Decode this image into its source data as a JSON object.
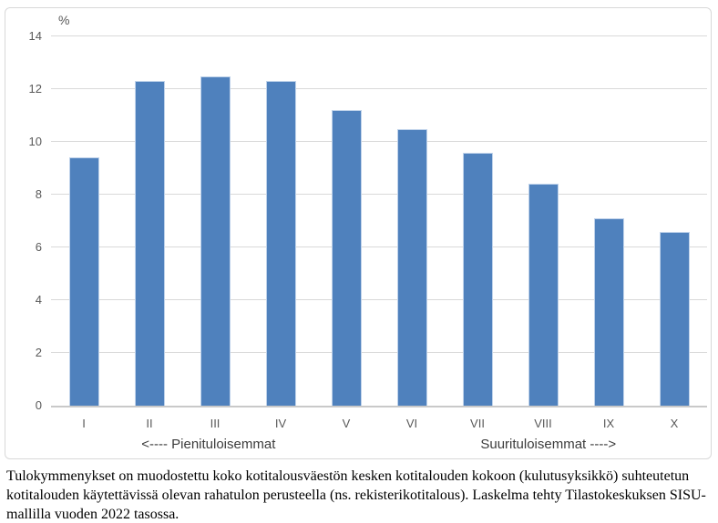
{
  "chart": {
    "unit_label": "%",
    "xlabel_left": "<---- Pienituloisemmat",
    "xlabel_right": "Suurituloisemmat ---->"
  },
  "chart_data": {
    "type": "bar",
    "title": "",
    "categories": [
      "I",
      "II",
      "III",
      "IV",
      "V",
      "VI",
      "VII",
      "VIII",
      "IX",
      "X"
    ],
    "values": [
      9.4,
      12.3,
      12.5,
      12.3,
      11.2,
      10.5,
      9.6,
      8.4,
      7.1,
      6.6
    ],
    "xlabel": "",
    "ylabel": "%",
    "ylim": [
      0,
      14
    ],
    "ytick_step": 2,
    "grid": true,
    "legend": false,
    "annotations": [
      "<---- Pienituloisemmat",
      "Suurituloisemmat ---->"
    ],
    "colors": {
      "bar": "#4f81bd",
      "gridline": "#d9d9d9",
      "axis_line": "#c9c9c9",
      "tick_text": "#595959",
      "group_label_text": "#3c3c3c",
      "frame_border": "#d8d8d8"
    }
  },
  "caption": {
    "lines": [
      "Tulokymmenykset on muodostettu koko kotitalousväestön kesken kotitalouden kokoon (kulutusyksikkö) suhteutetun",
      "kotitalouden käytettävissä olevan rahatulon perusteella (ns. rekisterikotitalous). Laskelma tehty Tilastokeskuksen SISU-",
      "mallilla vuoden 2022 tasossa."
    ]
  }
}
